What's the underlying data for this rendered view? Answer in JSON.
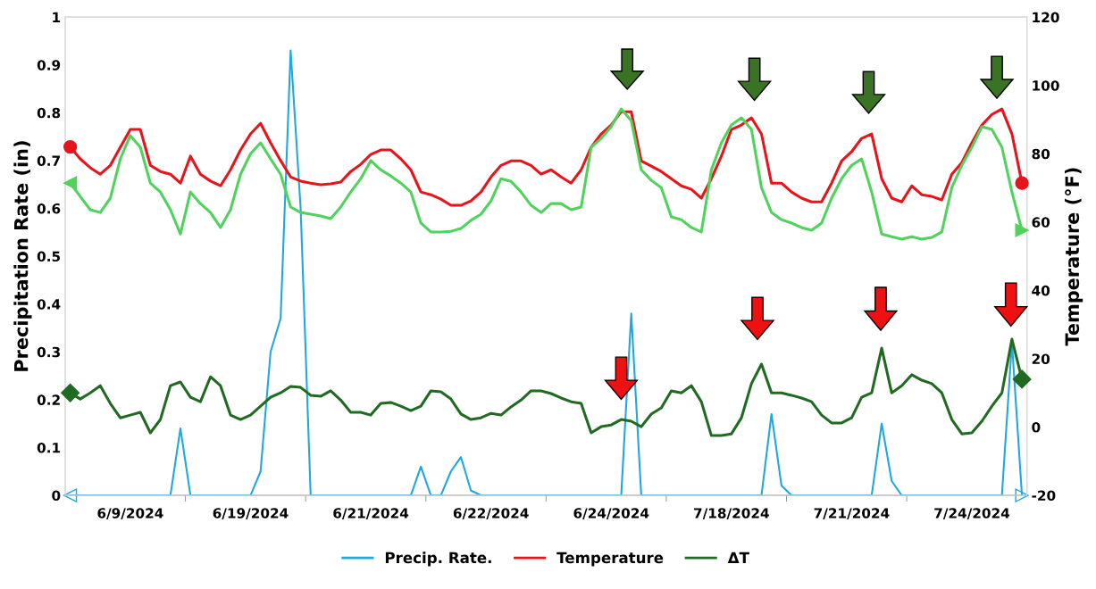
{
  "chart_data": {
    "type": "line",
    "categories": [
      null,
      null,
      null,
      null,
      null,
      null,
      "6/9/2024",
      null,
      null,
      null,
      null,
      null,
      null,
      null,
      null,
      null,
      null,
      null,
      "6/19/2024",
      null,
      null,
      null,
      null,
      null,
      null,
      null,
      null,
      null,
      null,
      null,
      "6/21/2024",
      null,
      null,
      null,
      null,
      null,
      null,
      null,
      null,
      null,
      null,
      null,
      "6/22/2024",
      null,
      null,
      null,
      null,
      null,
      null,
      null,
      null,
      null,
      null,
      null,
      "6/24/2024",
      null,
      null,
      null,
      null,
      null,
      null,
      null,
      null,
      null,
      null,
      null,
      "7/18/2024",
      null,
      null,
      null,
      null,
      null,
      null,
      null,
      null,
      null,
      null,
      null,
      "7/21/2024",
      null,
      null,
      null,
      null,
      null,
      null,
      null,
      null,
      null,
      null,
      null,
      "7/24/2024",
      null,
      null,
      null,
      null,
      null
    ],
    "ylabel": "Precipitation Rate (in)",
    "y2label": "Temperature (°F)",
    "ylim": [
      0,
      1
    ],
    "yticks": [
      0,
      0.1,
      0.2,
      0.3,
      0.4,
      0.5,
      0.6,
      0.7,
      0.8,
      0.9,
      1
    ],
    "y2lim": [
      -20,
      120
    ],
    "y2ticks": [
      -20,
      0,
      20,
      40,
      60,
      80,
      100,
      120
    ],
    "grid": false,
    "legend": "bottom",
    "series": [
      {
        "name": "Precip. Rate.",
        "color": "#1fa8e0",
        "values": [
          0,
          0,
          0,
          0,
          0,
          0,
          0,
          0,
          0,
          0,
          0,
          0.14,
          0,
          0,
          0,
          0,
          0,
          0,
          0,
          0.05,
          0.3,
          0.37,
          0.93,
          0.6,
          0,
          0,
          0,
          0,
          0,
          0,
          0,
          0,
          0,
          0,
          0,
          0.06,
          0,
          0,
          0.05,
          0.08,
          0.01,
          0,
          0,
          0,
          0,
          0,
          0,
          0,
          0,
          0,
          0,
          0,
          0,
          0,
          0,
          0,
          0.38,
          0,
          0,
          0,
          0,
          0,
          0,
          0,
          0,
          0,
          0,
          0,
          0,
          0,
          0.17,
          0.02,
          0,
          0,
          0,
          0,
          0,
          0,
          0,
          0,
          0,
          0.15,
          0.03,
          0,
          0,
          0,
          0,
          0,
          0,
          0,
          0,
          0,
          0,
          0,
          0.32,
          0
        ]
      },
      {
        "name": "Temperature",
        "color": "#e8141b",
        "axis": "y2",
        "values": [
          82,
          78.5,
          75.9,
          74,
          76.6,
          81.9,
          87.1,
          87.1,
          76.6,
          74.8,
          74,
          71.4,
          79.3,
          74,
          72,
          70.6,
          75.3,
          81.1,
          85.8,
          88.9,
          83.2,
          78,
          73.2,
          72,
          71.4,
          70.9,
          71.2,
          71.7,
          74.8,
          76.9,
          79.8,
          81.1,
          81.1,
          78.5,
          75.3,
          68.8,
          68,
          66.7,
          64.9,
          64.9,
          66.2,
          68.8,
          73.2,
          76.6,
          77.9,
          77.9,
          76.6,
          74,
          75.3,
          73.2,
          71.4,
          75.3,
          81.9,
          85.8,
          88.4,
          92.3,
          92.3,
          77.9,
          76.4,
          74.8,
          72.7,
          70.6,
          69.6,
          67,
          72.7,
          79.3,
          87.1,
          88.4,
          90.5,
          85.8,
          71.4,
          71.4,
          68.8,
          67,
          65.9,
          65.9,
          71.4,
          77.9,
          80.6,
          84.5,
          85.8,
          72.7,
          67,
          65.9,
          70.6,
          68,
          67.5,
          66.5,
          74,
          77.4,
          83.2,
          88.4,
          91.5,
          93.1,
          85.8,
          71.4
        ]
      },
      {
        "color": "#4fd35c",
        "axis": "y2",
        "values": [
          71.4,
          67.5,
          63.6,
          62.8,
          67,
          78.5,
          85.3,
          81.9,
          71.4,
          68.8,
          63.6,
          56.5,
          68.8,
          65.4,
          62.8,
          58.4,
          63.6,
          74,
          80,
          83.2,
          78.5,
          74,
          64.4,
          62.8,
          62.3,
          61.8,
          61,
          64.4,
          68.8,
          72.7,
          78,
          75.3,
          73.5,
          71.4,
          68.8,
          59.7,
          57.1,
          57.1,
          57.3,
          58.1,
          60.5,
          62.3,
          66.2,
          72.7,
          71.9,
          68.8,
          64.9,
          62.8,
          65.4,
          65.4,
          63.6,
          64.4,
          81.9,
          84.5,
          87.9,
          93.1,
          89.7,
          75.3,
          72.2,
          70.1,
          61.5,
          60.7,
          58.4,
          57.1,
          75.3,
          83.2,
          88.4,
          90.5,
          87.1,
          70.1,
          62.8,
          60.7,
          59.7,
          58.4,
          57.6,
          59.7,
          67,
          72.7,
          76.6,
          78.5,
          68.8,
          56.5,
          55.7,
          55,
          55.7,
          55,
          55.5,
          57.1,
          70.1,
          76.6,
          81.9,
          87.9,
          87.1,
          81.9,
          68.8,
          57.6
        ]
      },
      {
        "name": "ΔT",
        "color": "#216a22",
        "axis": "y2",
        "values": [
          10,
          8.2,
          10,
          12.1,
          6.9,
          2.7,
          3.5,
          4.3,
          -1.7,
          2.2,
          12.1,
          13.2,
          8.7,
          7.4,
          14.7,
          12.1,
          3.5,
          2.2,
          3.5,
          6.1,
          8.7,
          10,
          11.9,
          11.6,
          9.3,
          9,
          10.6,
          7.9,
          4.3,
          4.3,
          3.5,
          6.9,
          7.2,
          6.1,
          4.8,
          6.1,
          10.6,
          10.3,
          8.2,
          3.8,
          2.2,
          2.7,
          4,
          3.5,
          5.9,
          7.9,
          10.6,
          10.6,
          9.8,
          8.5,
          7.4,
          6.9,
          -1.7,
          0.1,
          0.6,
          2.2,
          1.7,
          0.1,
          3.8,
          5.6,
          10.6,
          10,
          12.1,
          7.4,
          -2.5,
          -2.5,
          -2,
          2.7,
          12.7,
          18.4,
          10,
          10,
          9.3,
          8.5,
          7.4,
          3.5,
          1.2,
          1.2,
          2.7,
          8.7,
          10,
          23.1,
          10,
          12.1,
          15.3,
          13.7,
          12.7,
          10,
          2.2,
          -2,
          -1.7,
          1.7,
          6.1,
          10,
          25.7,
          14
        ]
      }
    ]
  }
}
